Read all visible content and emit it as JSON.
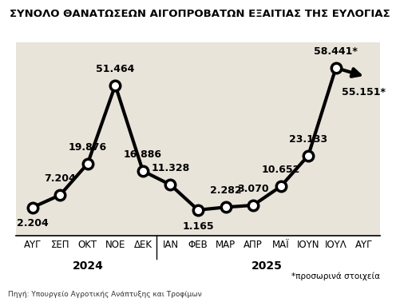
{
  "chart_data": {
    "type": "line",
    "title": "ΣΥΝΟΛΟ ΘΑΝΑΤΩΣΕΩΝ ΑΙΓΟΠΡΟΒΑΤΩΝ ΕΞΑΙΤΙΑΣ ΤΗΣ ΕΥΛΟΓΙΑΣ",
    "categories": [
      "ΑΥΓ",
      "ΣΕΠ",
      "ΟΚΤ",
      "ΝΟΕ",
      "ΔΕΚ",
      "ΙΑΝ",
      "ΦΕΒ",
      "ΜΑΡ",
      "ΑΠΡ",
      "ΜΑΪ",
      "ΙΟΥΝ",
      "ΙΟΥΛ",
      "ΑΥΓ"
    ],
    "year_groups": [
      {
        "label": "2024",
        "size": 5
      },
      {
        "label": "2025",
        "size": 8
      }
    ],
    "values": [
      2204,
      7204,
      19876,
      51464,
      16886,
      11328,
      1165,
      2282,
      3070,
      10652,
      23133,
      58441,
      55151
    ],
    "value_labels": [
      "2.204",
      "7.204",
      "19.876",
      "51.464",
      "16.886",
      "11.328",
      "1.165",
      "2.282",
      "3.070",
      "10.652",
      "23.133",
      "58.441*",
      "55.151*"
    ],
    "color": "#000000",
    "marker": "o",
    "line_style": "solid",
    "data_labels": true,
    "tick_labels": "x",
    "grid": false,
    "footnote": "*προσωρινά στοιχεία",
    "source": "Πηγή: Υπουργείο Αγροτικής Ανάπτυξης και Τροφίμων"
  }
}
